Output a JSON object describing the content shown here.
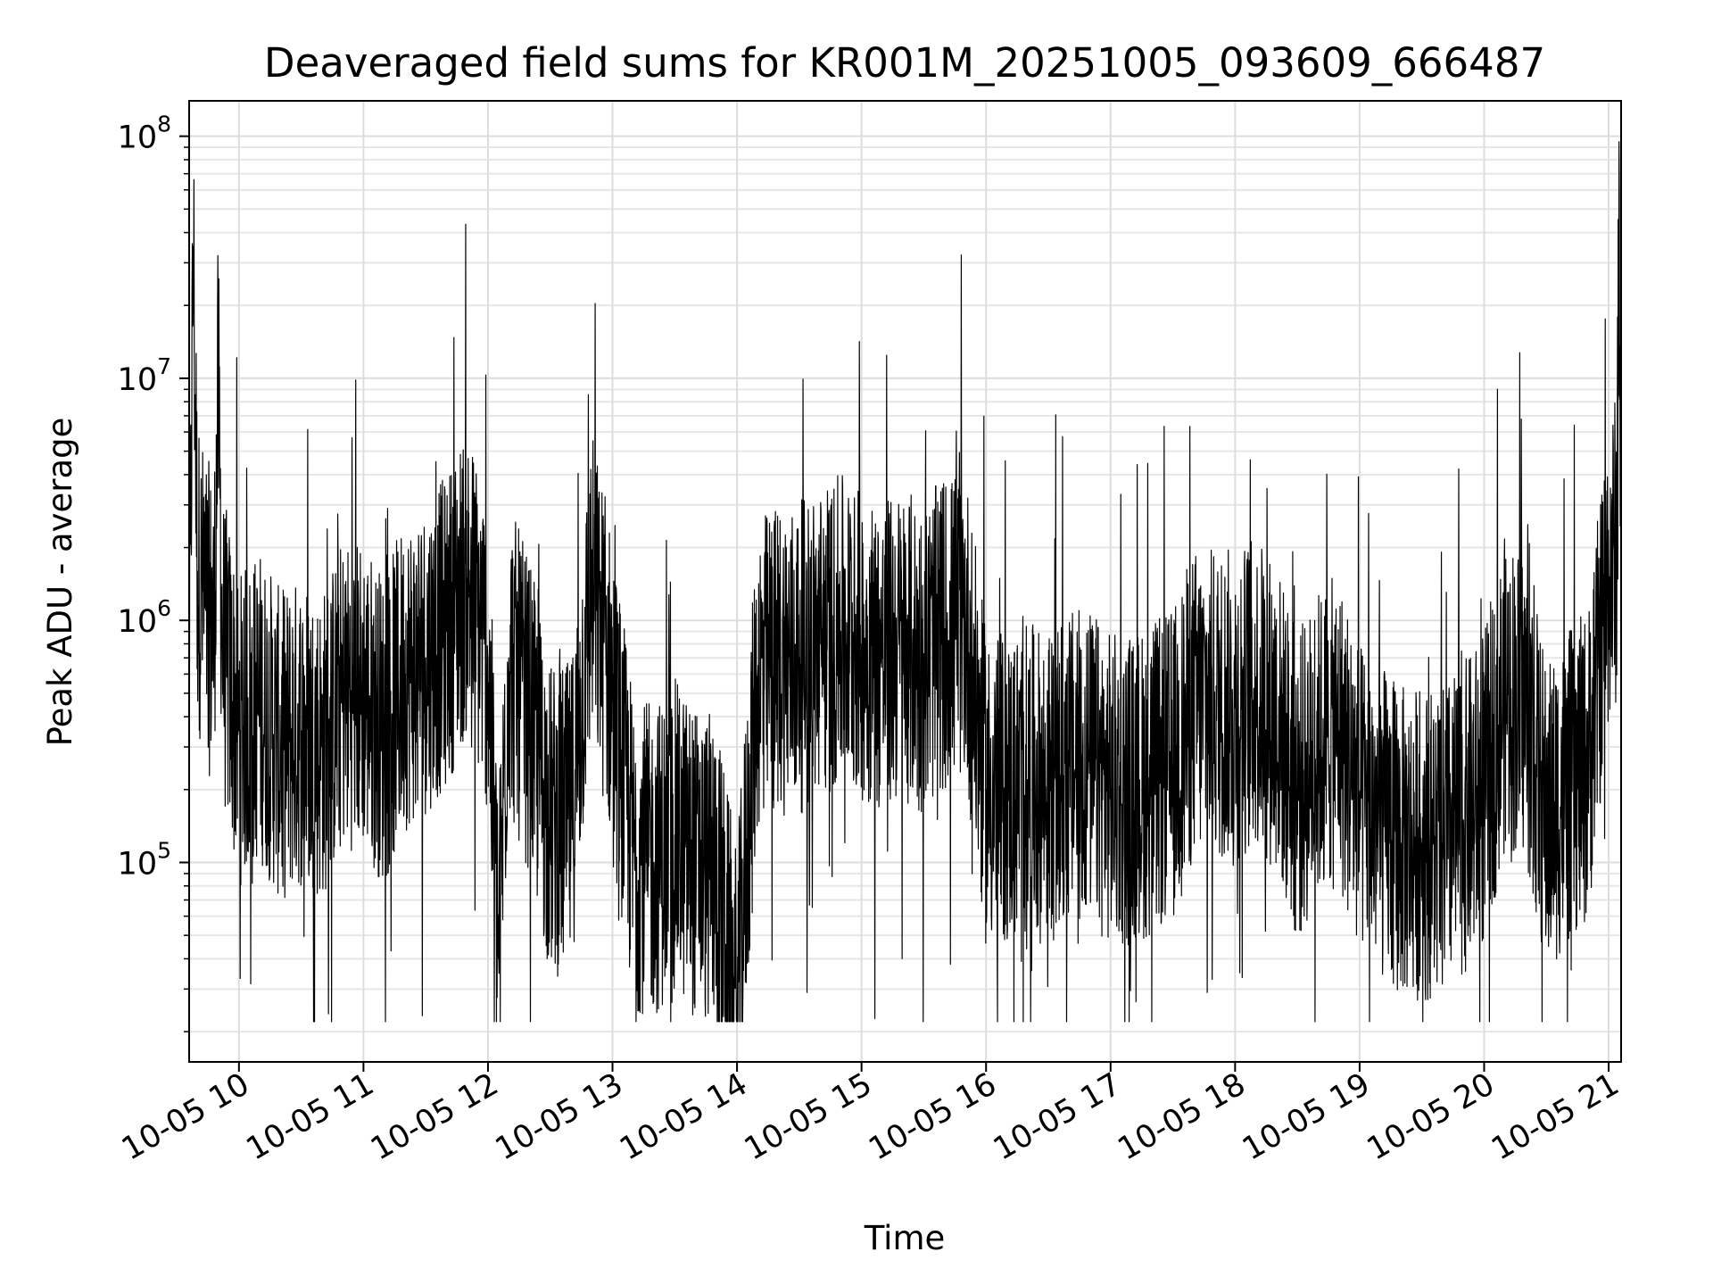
{
  "chart_data": {
    "type": "line",
    "title": "Deaveraged field sums for KR001M_20251005_093609_666487",
    "xlabel": "Time",
    "ylabel": "Peak ADU - average",
    "y_scale": "log",
    "ylim": [
      15000,
      140000000
    ],
    "x_range": [
      "2025-10-05 09:36",
      "2025-10-05 21:06"
    ],
    "grid": true,
    "line_color": "#000000",
    "x_ticks": [
      {
        "at": "2025-10-05 10:00",
        "label": "10-05 10"
      },
      {
        "at": "2025-10-05 11:00",
        "label": "10-05 11"
      },
      {
        "at": "2025-10-05 12:00",
        "label": "10-05 12"
      },
      {
        "at": "2025-10-05 13:00",
        "label": "10-05 13"
      },
      {
        "at": "2025-10-05 14:00",
        "label": "10-05 14"
      },
      {
        "at": "2025-10-05 15:00",
        "label": "10-05 15"
      },
      {
        "at": "2025-10-05 16:00",
        "label": "10-05 16"
      },
      {
        "at": "2025-10-05 17:00",
        "label": "10-05 17"
      },
      {
        "at": "2025-10-05 18:00",
        "label": "10-05 18"
      },
      {
        "at": "2025-10-05 19:00",
        "label": "10-05 19"
      },
      {
        "at": "2025-10-05 20:00",
        "label": "10-05 20"
      },
      {
        "at": "2025-10-05 21:00",
        "label": "10-05 21"
      }
    ],
    "y_ticks": [
      {
        "value": 100000,
        "mantissa": "10",
        "exponent": "5"
      },
      {
        "value": 1000000,
        "mantissa": "10",
        "exponent": "6"
      },
      {
        "value": 10000000,
        "mantissa": "10",
        "exponent": "7"
      },
      {
        "value": 100000000,
        "mantissa": "10",
        "exponent": "8"
      }
    ],
    "series": [
      {
        "points": [
          [
            "2025-10-05 09:36",
            450000
          ],
          [
            "2025-10-05 09:38",
            35000000
          ],
          [
            "2025-10-05 09:40",
            1600000
          ],
          [
            "2025-10-05 09:44",
            1100000
          ],
          [
            "2025-10-05 09:48",
            900000
          ],
          [
            "2025-10-05 09:50",
            9000000
          ],
          [
            "2025-10-05 09:52",
            800000
          ],
          [
            "2025-10-05 10:00",
            350000
          ],
          [
            "2025-10-05 10:10",
            450000
          ],
          [
            "2025-10-05 10:20",
            300000
          ],
          [
            "2025-10-05 10:30",
            350000
          ],
          [
            "2025-10-05 10:40",
            300000
          ],
          [
            "2025-10-05 10:50",
            500000
          ],
          [
            "2025-10-05 11:00",
            500000
          ],
          [
            "2025-10-05 11:10",
            350000
          ],
          [
            "2025-10-05 11:20",
            600000
          ],
          [
            "2025-10-05 11:30",
            700000
          ],
          [
            "2025-10-05 11:40",
            900000
          ],
          [
            "2025-10-05 11:50",
            1500000
          ],
          [
            "2025-10-05 12:00",
            700000
          ],
          [
            "2025-10-05 12:05",
            40000
          ],
          [
            "2025-10-05 12:10",
            700000
          ],
          [
            "2025-10-05 12:20",
            400000
          ],
          [
            "2025-10-05 12:30",
            150000
          ],
          [
            "2025-10-05 12:40",
            150000
          ],
          [
            "2025-10-05 12:50",
            1400000
          ],
          [
            "2025-10-05 13:00",
            500000
          ],
          [
            "2025-10-05 13:10",
            110000
          ],
          [
            "2025-10-05 13:20",
            100000
          ],
          [
            "2025-10-05 13:30",
            130000
          ],
          [
            "2025-10-05 13:40",
            100000
          ],
          [
            "2025-10-05 13:50",
            90000
          ],
          [
            "2025-10-05 14:00",
            25000
          ],
          [
            "2025-10-05 14:10",
            600000
          ],
          [
            "2025-10-05 14:20",
            700000
          ],
          [
            "2025-10-05 14:30",
            700000
          ],
          [
            "2025-10-05 14:40",
            800000
          ],
          [
            "2025-10-05 14:50",
            900000
          ],
          [
            "2025-10-05 15:00",
            800000
          ],
          [
            "2025-10-05 15:10",
            700000
          ],
          [
            "2025-10-05 15:20",
            800000
          ],
          [
            "2025-10-05 15:30",
            700000
          ],
          [
            "2025-10-05 15:40",
            900000
          ],
          [
            "2025-10-05 15:50",
            1000000
          ],
          [
            "2025-10-05 16:00",
            200000
          ],
          [
            "2025-10-05 16:10",
            200000
          ],
          [
            "2025-10-05 16:20",
            220000
          ],
          [
            "2025-10-05 16:30",
            200000
          ],
          [
            "2025-10-05 16:40",
            250000
          ],
          [
            "2025-10-05 16:50",
            250000
          ],
          [
            "2025-10-05 17:00",
            200000
          ],
          [
            "2025-10-05 17:10",
            200000
          ],
          [
            "2025-10-05 17:20",
            220000
          ],
          [
            "2025-10-05 17:30",
            250000
          ],
          [
            "2025-10-05 17:40",
            450000
          ],
          [
            "2025-10-05 17:50",
            450000
          ],
          [
            "2025-10-05 18:00",
            450000
          ],
          [
            "2025-10-05 18:10",
            500000
          ],
          [
            "2025-10-05 18:20",
            400000
          ],
          [
            "2025-10-05 18:30",
            200000
          ],
          [
            "2025-10-05 18:40",
            300000
          ],
          [
            "2025-10-05 18:50",
            350000
          ],
          [
            "2025-10-05 19:00",
            180000
          ],
          [
            "2025-10-05 19:10",
            150000
          ],
          [
            "2025-10-05 19:20",
            120000
          ],
          [
            "2025-10-05 19:30",
            120000
          ],
          [
            "2025-10-05 19:40",
            120000
          ],
          [
            "2025-10-05 19:50",
            150000
          ],
          [
            "2025-10-05 20:00",
            200000
          ],
          [
            "2025-10-05 20:10",
            500000
          ],
          [
            "2025-10-05 20:20",
            450000
          ],
          [
            "2025-10-05 20:30",
            150000
          ],
          [
            "2025-10-05 20:40",
            200000
          ],
          [
            "2025-10-05 20:50",
            250000
          ],
          [
            "2025-10-05 21:00",
            1600000
          ],
          [
            "2025-10-05 21:04",
            2000000
          ],
          [
            "2025-10-05 21:05",
            95000000
          ],
          [
            "2025-10-05 21:06",
            500000
          ]
        ]
      }
    ]
  }
}
